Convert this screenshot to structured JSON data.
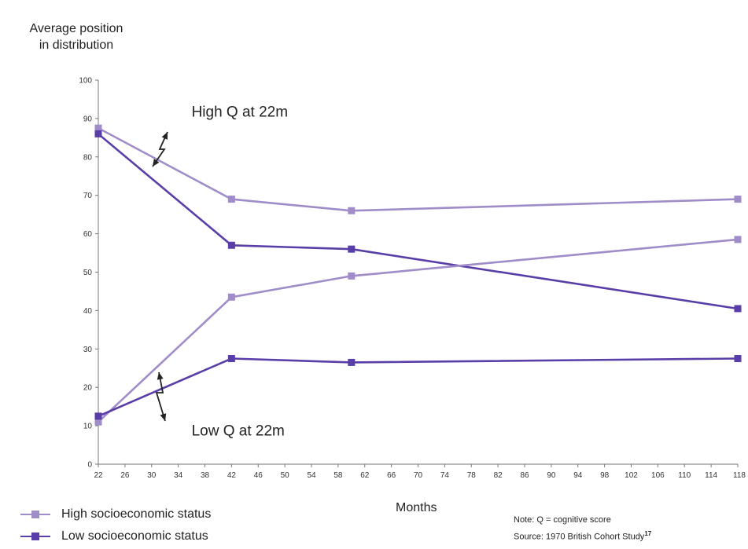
{
  "chart_data": {
    "type": "line",
    "ylabel_lines": [
      "Average position",
      "in distribution"
    ],
    "xlabel": "Months",
    "xlim": [
      22,
      118
    ],
    "ylim": [
      0,
      100
    ],
    "x_ticks": [
      22,
      26,
      30,
      34,
      38,
      42,
      46,
      50,
      54,
      58,
      62,
      66,
      70,
      74,
      78,
      82,
      86,
      90,
      94,
      98,
      102,
      106,
      110,
      114,
      118
    ],
    "y_ticks": [
      0,
      10,
      20,
      30,
      40,
      50,
      60,
      70,
      80,
      90,
      100
    ],
    "x_tick_labels": [
      "22",
      "26",
      "30",
      "34",
      "38",
      "42",
      "46",
      "50",
      "54",
      "58",
      "62",
      "66",
      "70",
      "74",
      "78",
      "82",
      "86",
      "90",
      "94",
      "98",
      "102",
      "106",
      "110",
      "114",
      "118"
    ],
    "y_tick_labels": [
      "0",
      "10",
      "20",
      "30",
      "40",
      "50",
      "60",
      "70",
      "80",
      "90",
      "100"
    ],
    "series": [
      {
        "name": "High socioeconomic status",
        "group": "High Q at 22m",
        "color": "#a08cc8",
        "x": [
          22,
          42,
          60,
          118
        ],
        "values": [
          87.5,
          69,
          66,
          69
        ]
      },
      {
        "name": "Low socioeconomic status",
        "group": "High Q at 22m",
        "color": "#5a3ea8",
        "x": [
          22,
          42,
          60,
          118
        ],
        "values": [
          86,
          57,
          56,
          40.5
        ]
      },
      {
        "name": "High socioeconomic status",
        "group": "Low Q at 22m",
        "color": "#a08cc8",
        "x": [
          22,
          42,
          60,
          118
        ],
        "values": [
          11,
          43.5,
          49,
          58.5
        ]
      },
      {
        "name": "Low socioeconomic status",
        "group": "Low Q at 22m",
        "color": "#5a3ea8",
        "x": [
          22,
          42,
          60,
          118
        ],
        "values": [
          12.5,
          27.5,
          26.5,
          27.5
        ]
      }
    ],
    "annotations": [
      {
        "text": "High Q at 22m",
        "x": 36,
        "y": 90.5
      },
      {
        "text": "Low Q at 22m",
        "x": 36,
        "y": 7.5
      }
    ],
    "legend": [
      {
        "label": "High socioeconomic status",
        "color": "#a08cc8"
      },
      {
        "label": "Low socioeconomic status",
        "color": "#5a3ea8"
      }
    ],
    "legend_position": "bottom-left",
    "grid": false
  },
  "note": {
    "line1": "Note: Q = cognitive score",
    "line2_text": "Source: 1970 British Cohort Study",
    "line2_sup": "17"
  }
}
